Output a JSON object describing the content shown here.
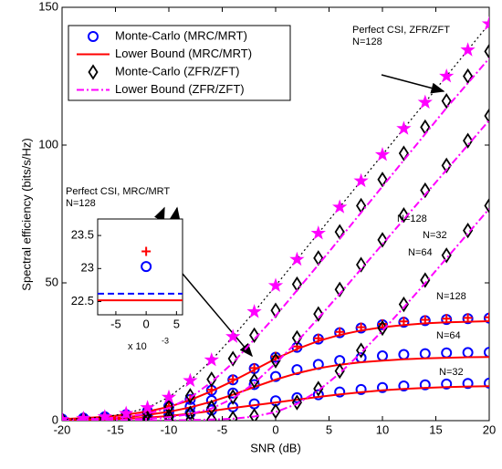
{
  "chart_data": {
    "type": "line",
    "xlabel": "SNR (dB)",
    "ylabel": "Spectral efficiency (bits/s/Hz)",
    "xlim": [
      -20,
      20
    ],
    "ylim": [
      0,
      150
    ],
    "xticks": [
      -20,
      -15,
      -10,
      -5,
      0,
      5,
      10,
      15,
      20
    ],
    "yticks": [
      0,
      50,
      100,
      150
    ],
    "x": [
      -20,
      -18,
      -16,
      -14,
      -12,
      -10,
      -8,
      -6,
      -4,
      -2,
      0,
      2,
      4,
      6,
      8,
      10,
      12,
      14,
      16,
      18,
      20
    ],
    "series": [
      {
        "name": "Monte-Carlo (MRC/MRT)",
        "color": "#0000ff",
        "marker": "circle",
        "line": null,
        "values": [
          0.6,
          0.9,
          1.4,
          2.2,
          3.4,
          5.2,
          7.7,
          11.0,
          14.8,
          18.9,
          23.0,
          26.6,
          29.6,
          31.9,
          33.6,
          34.8,
          35.7,
          36.3,
          36.7,
          37.0,
          37.2
        ]
      },
      {
        "color": "#0000ff",
        "marker": "circle",
        "line": null,
        "values": [
          0.4,
          0.6,
          0.9,
          1.4,
          2.2,
          3.4,
          5.1,
          7.3,
          10.0,
          13.1,
          16.0,
          18.5,
          20.4,
          21.8,
          22.8,
          23.5,
          24.0,
          24.3,
          24.6,
          24.7,
          24.8
        ]
      },
      {
        "color": "#0000ff",
        "marker": "circle",
        "line": null,
        "values": [
          0.2,
          0.3,
          0.5,
          0.8,
          1.2,
          1.8,
          2.7,
          3.8,
          5.0,
          6.1,
          7.2,
          8.3,
          9.4,
          10.4,
          11.3,
          12.0,
          12.6,
          13.0,
          13.3,
          13.5,
          13.6
        ]
      },
      {
        "name": "Lower Bound (MRC/MRT)",
        "color": "#ff0000",
        "marker": null,
        "line": "solid",
        "values": [
          0.6,
          0.9,
          1.4,
          2.2,
          3.3,
          5.0,
          7.5,
          10.7,
          14.4,
          18.4,
          22.5,
          26.0,
          28.9,
          31.1,
          32.7,
          33.9,
          34.7,
          35.3,
          35.7,
          35.9,
          36.1
        ]
      },
      {
        "color": "#ff0000",
        "marker": null,
        "line": "solid",
        "values": [
          0.4,
          0.6,
          0.9,
          1.3,
          2.1,
          3.2,
          4.8,
          6.9,
          9.4,
          12.2,
          14.9,
          17.2,
          19.0,
          20.3,
          21.2,
          21.8,
          22.3,
          22.6,
          22.8,
          23.0,
          23.1
        ]
      },
      {
        "color": "#ff0000",
        "marker": null,
        "line": "solid",
        "values": [
          0.2,
          0.3,
          0.5,
          0.7,
          1.1,
          1.7,
          2.5,
          3.5,
          4.6,
          5.6,
          6.6,
          7.6,
          8.6,
          9.5,
          10.3,
          11.0,
          11.5,
          11.9,
          12.2,
          12.4,
          12.5
        ]
      },
      {
        "color": "#ff0000",
        "marker": "plus",
        "line": null,
        "values": [
          0.6,
          0.9,
          1.4,
          2.2,
          3.4,
          5.3,
          7.8,
          11.2,
          15.0,
          19.1,
          23.3,
          26.9,
          29.9,
          32.2,
          33.9,
          35.1,
          36.0,
          36.6,
          37.0,
          37.3,
          37.5
        ]
      },
      {
        "name": "Monte-Carlo (ZFR/ZFT)",
        "color": "#000000",
        "marker": "diamond",
        "line": null,
        "values": [
          0.3,
          0.5,
          0.8,
          1.5,
          2.7,
          5,
          9,
          15,
          22.5,
          31,
          40,
          49.5,
          59,
          68.5,
          78,
          87.5,
          97,
          106.5,
          116,
          125,
          134
        ]
      },
      {
        "color": "#000000",
        "marker": "diamond",
        "line": null,
        "values": [
          0.1,
          0.1,
          0.2,
          0.4,
          0.8,
          1.4,
          2.6,
          4.8,
          8.6,
          14.5,
          21.8,
          30,
          38.7,
          47.6,
          56.6,
          65.6,
          74.6,
          83.6,
          92.6,
          101.6,
          110.6
        ]
      },
      {
        "color": "#000000",
        "marker": "diamond",
        "line": null,
        "values": [
          0.1,
          0.1,
          0.1,
          0.1,
          0.1,
          0.1,
          0.2,
          0.4,
          0.8,
          1.7,
          3.4,
          6.6,
          11.6,
          18,
          25.5,
          33.6,
          42.2,
          51,
          60,
          69,
          78
        ]
      },
      {
        "name": "Lower Bound (ZFR/ZFT)",
        "color": "#ff00ff",
        "marker": null,
        "line": "dashdot",
        "values": [
          0.3,
          0.5,
          0.8,
          1.4,
          2.5,
          4.6,
          8.3,
          14,
          21,
          29.5,
          38,
          47.3,
          56.6,
          66,
          75.5,
          85,
          94.5,
          104,
          113.5,
          122.5,
          131.5
        ]
      },
      {
        "color": "#ff00ff",
        "marker": null,
        "line": "dashdot",
        "values": [
          0.1,
          0.1,
          0.2,
          0.4,
          0.7,
          1.3,
          2.4,
          4.4,
          8,
          13.6,
          20.8,
          28.6,
          37.2,
          46,
          55,
          64,
          73,
          82,
          91,
          100,
          109
        ]
      },
      {
        "color": "#ff00ff",
        "marker": null,
        "line": "dashdot",
        "values": [
          0.1,
          0.1,
          0.1,
          0.1,
          0.1,
          0.1,
          0.2,
          0.4,
          0.7,
          1.5,
          3.1,
          6.1,
          10.9,
          17.2,
          24.6,
          32.6,
          41.1,
          49.9,
          58.9,
          67.9,
          76.9
        ]
      },
      {
        "color": "#ff00ff",
        "marker": "star",
        "line": "dotted",
        "values": [
          0.4,
          0.8,
          1.4,
          2.6,
          4.7,
          8.5,
          14.5,
          22,
          30.5,
          39.5,
          49,
          58.5,
          68,
          77.5,
          87,
          96.5,
          106,
          115.5,
          125,
          134.5,
          144
        ]
      }
    ],
    "annotations": [
      "Perfect CSI, ZFR/ZFT",
      "N=128",
      "N=128",
      "N=64",
      "N=32",
      "N=128",
      "N=64",
      "N=32",
      "Perfect CSI, MRC/MRT",
      "N=128"
    ],
    "inset": {
      "xlim": [
        -0.008,
        0.006
      ],
      "ylim": [
        22.3,
        23.75
      ],
      "xticks": [
        {
          "value": -0.005,
          "label": "-5"
        },
        {
          "value": 0,
          "label": "0"
        },
        {
          "value": 0.005,
          "label": "5"
        }
      ],
      "yticks": [
        22.5,
        23,
        23.5
      ],
      "exponent_base": "x 10",
      "exponent": "-3",
      "points": [
        {
          "marker": "plus",
          "color": "#ff0000",
          "x": 0,
          "y": 23.26
        },
        {
          "marker": "circle",
          "color": "#0000ff",
          "x": 0,
          "y": 23.03
        }
      ],
      "hlines": [
        {
          "color": "#0000ff",
          "line": "dashed",
          "value": 22.62
        },
        {
          "color": "#ff0000",
          "line": "solid",
          "value": 22.52
        }
      ]
    }
  }
}
